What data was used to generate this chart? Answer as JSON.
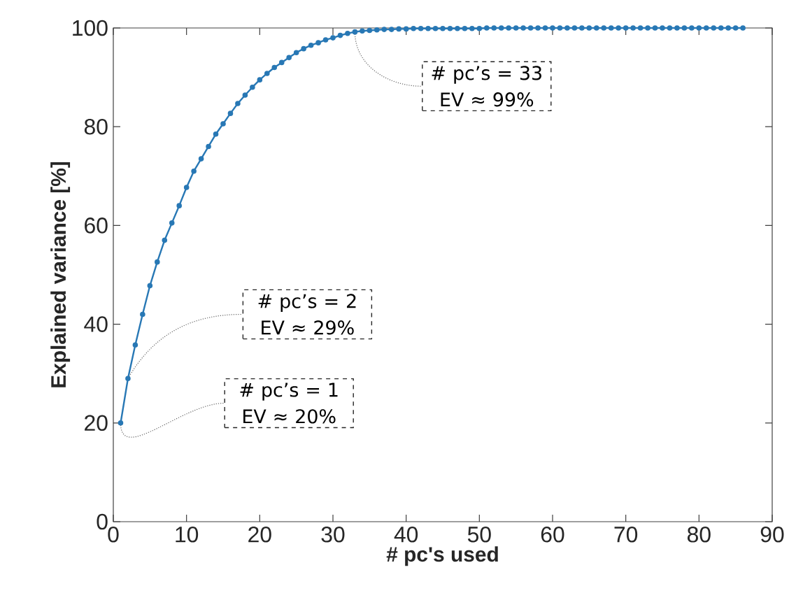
{
  "chart_data": {
    "type": "line",
    "xlabel": "# pc's used",
    "ylabel": "Explained variance [%]",
    "xlim": [
      0,
      90
    ],
    "ylim": [
      0,
      100
    ],
    "xticks": [
      0,
      10,
      20,
      30,
      40,
      50,
      60,
      70,
      80,
      90
    ],
    "yticks": [
      0,
      20,
      40,
      60,
      80,
      100
    ],
    "marker": "circle",
    "line_style": "solid",
    "series": [
      {
        "color": "#2878b5",
        "x": [
          1,
          2,
          3,
          4,
          5,
          6,
          7,
          8,
          9,
          10,
          11,
          12,
          13,
          14,
          15,
          16,
          17,
          18,
          19,
          20,
          21,
          22,
          23,
          24,
          25,
          26,
          27,
          28,
          29,
          30,
          31,
          32,
          33,
          34,
          35,
          36,
          37,
          38,
          39,
          40,
          41,
          42,
          43,
          44,
          45,
          46,
          47,
          48,
          49,
          50,
          51,
          52,
          53,
          54,
          55,
          56,
          57,
          58,
          59,
          60,
          61,
          62,
          63,
          64,
          65,
          66,
          67,
          68,
          69,
          70,
          71,
          72,
          73,
          74,
          75,
          76,
          77,
          78,
          79,
          80,
          81,
          82,
          83,
          84,
          85,
          86
        ],
        "values": [
          20,
          29,
          35.8,
          42,
          47.8,
          52.6,
          57,
          60.5,
          64,
          67.7,
          71,
          73.5,
          76,
          78.5,
          80.6,
          82.7,
          84.7,
          86.4,
          88,
          89.5,
          90.8,
          92,
          93,
          94,
          95,
          95.8,
          96.5,
          97,
          97.6,
          98,
          98.5,
          98.9,
          99.2,
          99.4,
          99.5,
          99.6,
          99.7,
          99.7,
          99.8,
          99.8,
          99.9,
          99.9,
          99.9,
          99.9,
          99.9,
          99.9,
          99.9,
          99.9,
          99.9,
          99.9,
          100,
          100,
          100,
          100,
          100,
          100,
          100,
          100,
          100,
          100,
          100,
          100,
          100,
          100,
          100,
          100,
          100,
          100,
          100,
          100,
          100,
          100,
          100,
          100,
          100,
          100,
          100,
          100,
          100,
          100,
          100,
          100,
          100,
          100,
          100,
          100
        ]
      }
    ],
    "annotations": [
      {
        "text": "# pc’s = 1 EV ≈ 20%",
        "x": 1,
        "y": 20
      },
      {
        "text": "# pc’s = 2 EV ≈ 29%",
        "x": 2,
        "y": 29
      },
      {
        "text": "# pc’s = 33 EV ≈ 99%",
        "x": 33,
        "y": 99.2
      }
    ]
  }
}
